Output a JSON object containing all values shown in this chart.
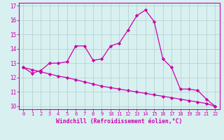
{
  "line1_x": [
    0,
    1,
    2,
    3,
    4,
    5,
    6,
    7,
    8,
    9,
    10,
    11,
    12,
    13,
    14,
    15,
    16,
    17,
    18,
    19,
    20,
    21,
    22
  ],
  "line1_y": [
    12.7,
    12.3,
    12.5,
    13.0,
    13.0,
    13.1,
    14.2,
    14.2,
    13.2,
    13.3,
    14.2,
    14.4,
    15.3,
    16.3,
    16.7,
    15.9,
    13.3,
    12.7,
    11.2,
    11.2,
    11.1,
    10.5,
    10.0
  ],
  "line2_x": [
    0,
    1,
    2,
    3,
    4,
    5,
    6,
    7,
    8,
    9,
    10,
    11,
    12,
    13,
    14,
    15,
    16,
    17,
    18,
    19,
    20,
    21,
    22
  ],
  "line2_y": [
    12.7,
    12.55,
    12.4,
    12.25,
    12.1,
    12.0,
    11.85,
    11.7,
    11.55,
    11.4,
    11.3,
    11.2,
    11.1,
    11.0,
    10.9,
    10.8,
    10.7,
    10.6,
    10.5,
    10.4,
    10.3,
    10.2,
    10.0
  ],
  "color": "#cc00aa",
  "bg_color": "#d8f0f0",
  "grid_color": "#b0cece",
  "xlabel": "Windchill (Refroidissement éolien,°C)",
  "ylim": [
    9.8,
    17.2
  ],
  "xlim": [
    -0.5,
    22.5
  ],
  "yticks": [
    10,
    11,
    12,
    13,
    14,
    15,
    16,
    17
  ],
  "xticks": [
    0,
    1,
    2,
    3,
    4,
    5,
    6,
    7,
    8,
    9,
    10,
    11,
    12,
    13,
    14,
    15,
    16,
    17,
    18,
    19,
    20,
    21,
    22
  ],
  "xtick_labels": [
    "0",
    "1",
    "2",
    "3",
    "4",
    "5",
    "6",
    "7",
    "8",
    "9",
    "10",
    "11",
    "12",
    "13",
    "14",
    "15",
    "16",
    "17",
    "18",
    "19",
    "20",
    "21",
    "22"
  ]
}
